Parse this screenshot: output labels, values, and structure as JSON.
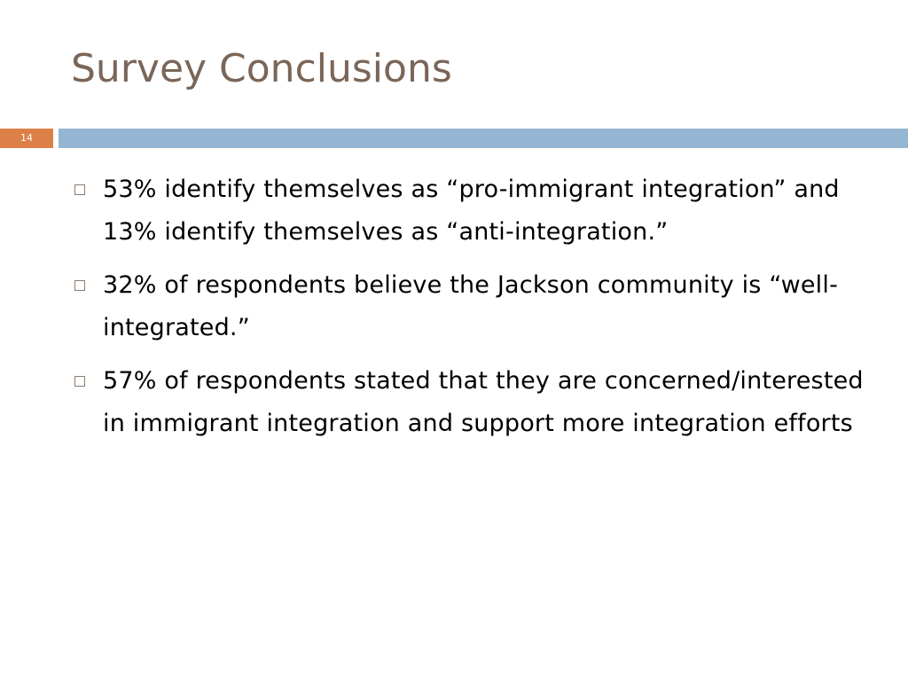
{
  "slide": {
    "title": "Survey Conclusions",
    "slide_number": "14",
    "bullets": [
      "53% identify themselves as “pro-immigrant integration” and 13% identify themselves as “anti-integration.”",
      "32% of respondents believe the Jackson community is “well-integrated.”",
      "57% of respondents stated that they are concerned/interested in immigrant integration and support more integration efforts"
    ]
  },
  "colors": {
    "title": "#7a6658",
    "slide_number_bg": "#dd8047",
    "divider_bar": "#94b6d2",
    "bullet_marker": "#8c7a6b"
  }
}
